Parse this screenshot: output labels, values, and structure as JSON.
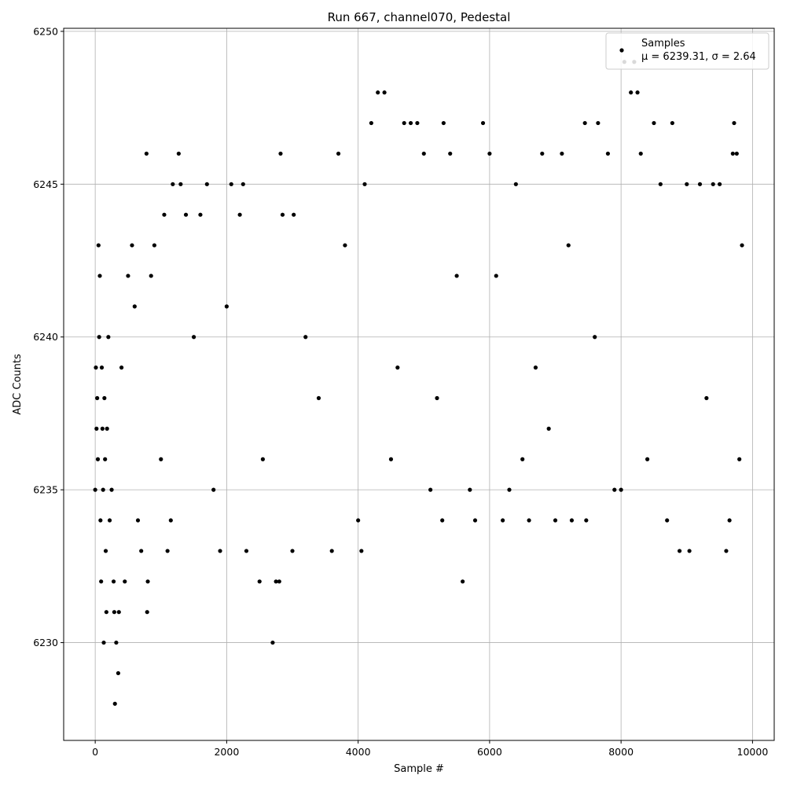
{
  "chart_data": {
    "type": "scatter",
    "title": "Run 667, channel070, Pedestal",
    "xlabel": "Sample #",
    "ylabel": "ADC Counts",
    "xlim": [
      -480,
      10330
    ],
    "ylim": [
      6226.8,
      6250.1
    ],
    "xticks": [
      0,
      2000,
      4000,
      6000,
      8000,
      10000
    ],
    "yticks": [
      6230,
      6235,
      6240,
      6245,
      6250
    ],
    "grid": true,
    "legend": {
      "placement": "top-right",
      "entries": [
        {
          "label": "Samples",
          "stats": "μ = 6239.31, σ = 2.64",
          "color": "#000000"
        }
      ]
    },
    "series": [
      {
        "name": "Samples",
        "color": "#000000",
        "x_range": [
          0,
          9840
        ],
        "mean": 6239.31,
        "std": 2.64,
        "points": [
          [
            0,
            6235
          ],
          [
            10,
            6239
          ],
          [
            20,
            6237
          ],
          [
            30,
            6238
          ],
          [
            40,
            6236
          ],
          [
            50,
            6243
          ],
          [
            60,
            6240
          ],
          [
            70,
            6242
          ],
          [
            80,
            6234
          ],
          [
            90,
            6232
          ],
          [
            100,
            6239
          ],
          [
            110,
            6237
          ],
          [
            120,
            6235
          ],
          [
            130,
            6230
          ],
          [
            140,
            6238
          ],
          [
            150,
            6236
          ],
          [
            160,
            6233
          ],
          [
            170,
            6231
          ],
          [
            180,
            6237
          ],
          [
            200,
            6240
          ],
          [
            220,
            6234
          ],
          [
            250,
            6235
          ],
          [
            280,
            6232
          ],
          [
            290,
            6231
          ],
          [
            300,
            6228
          ],
          [
            320,
            6230
          ],
          [
            350,
            6229
          ],
          [
            360,
            6231
          ],
          [
            400,
            6239
          ],
          [
            450,
            6232
          ],
          [
            500,
            6242
          ],
          [
            560,
            6243
          ],
          [
            600,
            6241
          ],
          [
            650,
            6234
          ],
          [
            700,
            6233
          ],
          [
            780,
            6246
          ],
          [
            790,
            6231
          ],
          [
            800,
            6232
          ],
          [
            850,
            6242
          ],
          [
            900,
            6243
          ],
          [
            1000,
            6236
          ],
          [
            1050,
            6244
          ],
          [
            1100,
            6233
          ],
          [
            1150,
            6234
          ],
          [
            1180,
            6245
          ],
          [
            1270,
            6246
          ],
          [
            1300,
            6245
          ],
          [
            1380,
            6244
          ],
          [
            1500,
            6240
          ],
          [
            1600,
            6244
          ],
          [
            1700,
            6245
          ],
          [
            1800,
            6235
          ],
          [
            1900,
            6233
          ],
          [
            2000,
            6241
          ],
          [
            2070,
            6245
          ],
          [
            2200,
            6244
          ],
          [
            2250,
            6245
          ],
          [
            2300,
            6233
          ],
          [
            2500,
            6232
          ],
          [
            2550,
            6236
          ],
          [
            2700,
            6230
          ],
          [
            2750,
            6232
          ],
          [
            2800,
            6232
          ],
          [
            2820,
            6246
          ],
          [
            2850,
            6244
          ],
          [
            3000,
            6233
          ],
          [
            3020,
            6244
          ],
          [
            3200,
            6240
          ],
          [
            3400,
            6238
          ],
          [
            3600,
            6233
          ],
          [
            3700,
            6246
          ],
          [
            3800,
            6243
          ],
          [
            4000,
            6234
          ],
          [
            4050,
            6233
          ],
          [
            4100,
            6245
          ],
          [
            4200,
            6247
          ],
          [
            4300,
            6248
          ],
          [
            4400,
            6248
          ],
          [
            4500,
            6236
          ],
          [
            4600,
            6239
          ],
          [
            4700,
            6247
          ],
          [
            4800,
            6247
          ],
          [
            4900,
            6247
          ],
          [
            5000,
            6246
          ],
          [
            5100,
            6235
          ],
          [
            5200,
            6238
          ],
          [
            5280,
            6234
          ],
          [
            5300,
            6247
          ],
          [
            5400,
            6246
          ],
          [
            5500,
            6242
          ],
          [
            5590,
            6232
          ],
          [
            5700,
            6235
          ],
          [
            5780,
            6234
          ],
          [
            5900,
            6247
          ],
          [
            6000,
            6246
          ],
          [
            6100,
            6242
          ],
          [
            6200,
            6234
          ],
          [
            6300,
            6235
          ],
          [
            6400,
            6245
          ],
          [
            6500,
            6236
          ],
          [
            6600,
            6234
          ],
          [
            6700,
            6239
          ],
          [
            6800,
            6246
          ],
          [
            6900,
            6237
          ],
          [
            7000,
            6234
          ],
          [
            7100,
            6246
          ],
          [
            7200,
            6243
          ],
          [
            7250,
            6234
          ],
          [
            7450,
            6247
          ],
          [
            7470,
            6234
          ],
          [
            7600,
            6240
          ],
          [
            7650,
            6247
          ],
          [
            7800,
            6246
          ],
          [
            7900,
            6235
          ],
          [
            8000,
            6235
          ],
          [
            8050,
            6249
          ],
          [
            8150,
            6248
          ],
          [
            8200,
            6249
          ],
          [
            8250,
            6248
          ],
          [
            8300,
            6246
          ],
          [
            8400,
            6236
          ],
          [
            8500,
            6247
          ],
          [
            8600,
            6245
          ],
          [
            8700,
            6234
          ],
          [
            8780,
            6247
          ],
          [
            8890,
            6233
          ],
          [
            9000,
            6245
          ],
          [
            9040,
            6233
          ],
          [
            9200,
            6245
          ],
          [
            9300,
            6238
          ],
          [
            9400,
            6245
          ],
          [
            9500,
            6245
          ],
          [
            9600,
            6233
          ],
          [
            9650,
            6234
          ],
          [
            9700,
            6246
          ],
          [
            9720,
            6247
          ],
          [
            9760,
            6246
          ],
          [
            9800,
            6236
          ],
          [
            9840,
            6243
          ]
        ]
      }
    ]
  }
}
